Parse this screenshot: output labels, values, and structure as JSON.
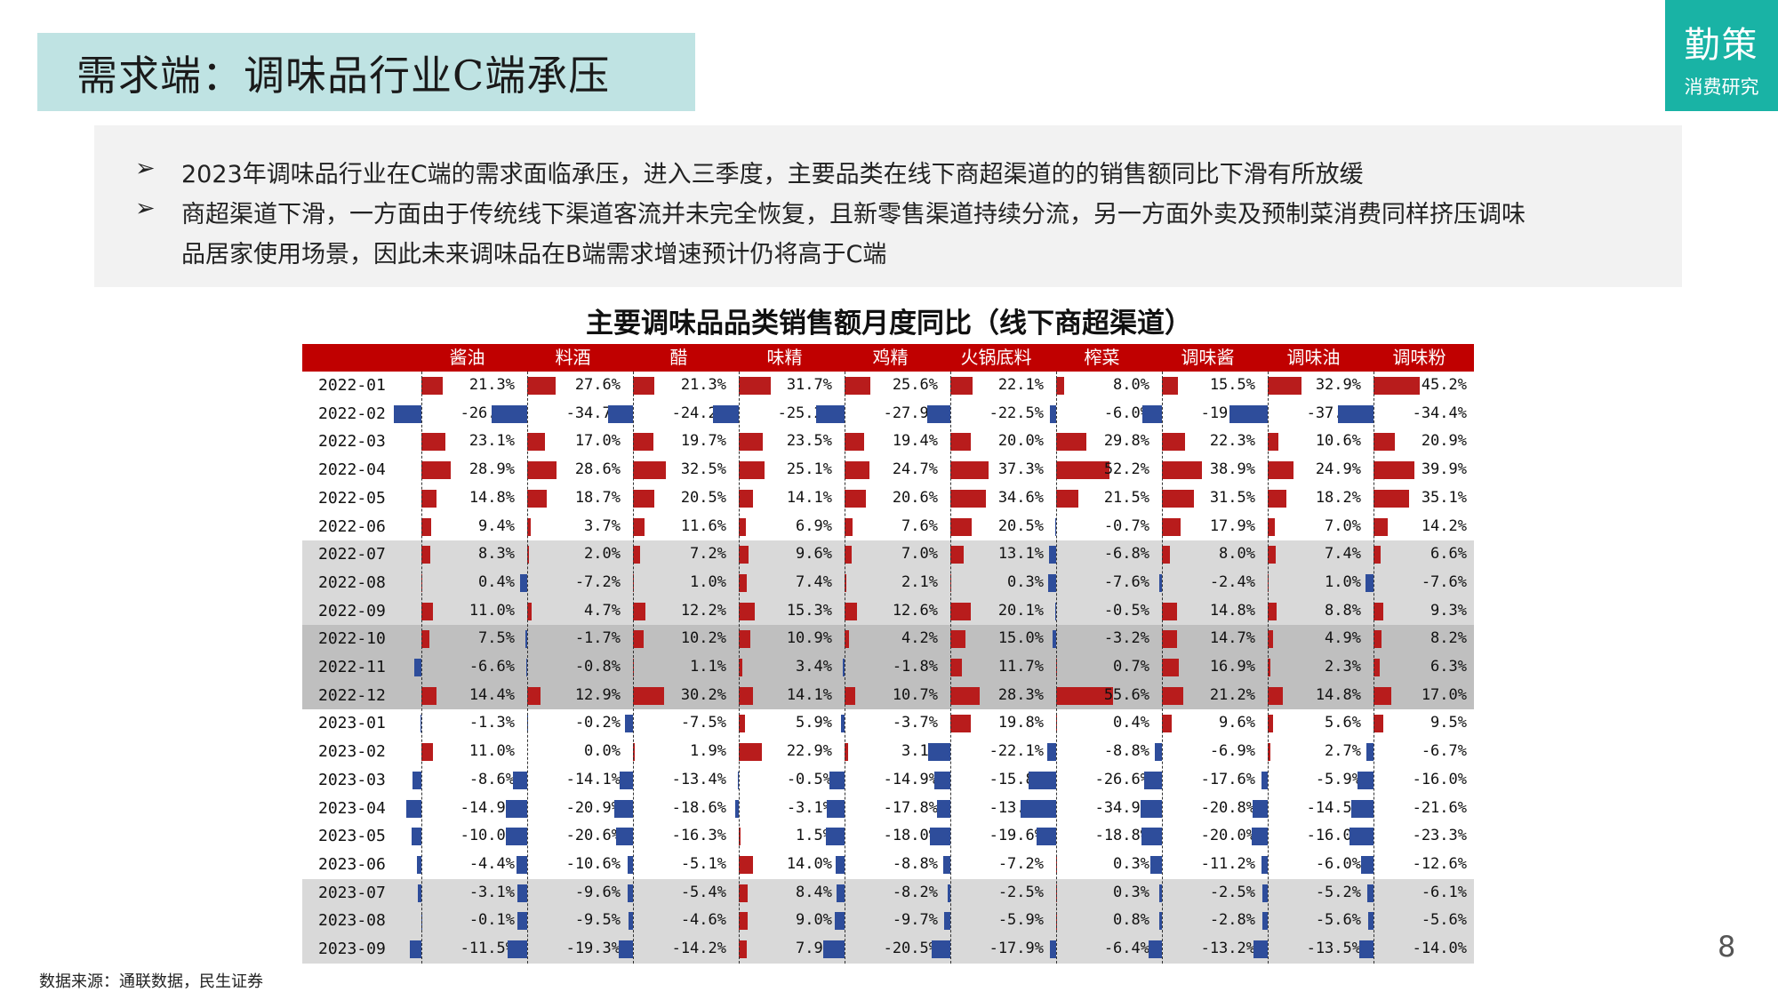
{
  "header": {
    "title": "需求端：调味品行业C端承压"
  },
  "logo": {
    "name": "勤策",
    "subtitle": "消费研究"
  },
  "summary": {
    "bullet_icon": "arrow-bullet-icon",
    "bullet_1": "2023年调味品行业在C端的需求面临承压，进入三季度，主要品类在线下商超渠道的的销售额同比下滑有所放缓",
    "bullet_2_line1": "商超渠道下滑，一方面由于传统线下渠道客流并未完全恢复，且新零售渠道持续分流，另一方面外卖及预制菜消费同样挤压调味",
    "bullet_2_line2": "品居家使用场景，因此未来调味品在B端需求增速预计仍将高于C端"
  },
  "chart_data": {
    "type": "table",
    "title": "主要调味品品类销售额月度同比（线下商超渠道）",
    "categories": [
      "酱油",
      "料酒",
      "醋",
      "味精",
      "鸡精",
      "火锅底料",
      "榨菜",
      "调味酱",
      "调味油",
      "调味粉"
    ],
    "rows": [
      {
        "date": "2022-01",
        "values": [
          21.3,
          27.6,
          21.3,
          31.7,
          25.6,
          22.1,
          8.0,
          15.5,
          32.9,
          45.2
        ]
      },
      {
        "date": "2022-02",
        "values": [
          -26.6,
          -34.7,
          -24.2,
          -25.2,
          -27.9,
          -22.5,
          -6.0,
          -19.3,
          -37.7,
          -34.4
        ]
      },
      {
        "date": "2022-03",
        "values": [
          23.1,
          17.0,
          19.7,
          23.5,
          19.4,
          20.0,
          29.8,
          22.3,
          10.6,
          20.9
        ]
      },
      {
        "date": "2022-04",
        "values": [
          28.9,
          28.6,
          32.5,
          25.1,
          24.7,
          37.3,
          52.2,
          38.9,
          24.9,
          39.9
        ]
      },
      {
        "date": "2022-05",
        "values": [
          14.8,
          18.7,
          20.5,
          14.1,
          20.6,
          34.6,
          21.5,
          31.5,
          18.2,
          35.1
        ]
      },
      {
        "date": "2022-06",
        "values": [
          9.4,
          3.7,
          11.6,
          6.9,
          7.6,
          20.5,
          -0.7,
          17.9,
          7.0,
          14.2
        ]
      },
      {
        "date": "2022-07",
        "values": [
          8.3,
          2.0,
          7.2,
          9.6,
          7.0,
          13.1,
          -6.8,
          8.0,
          7.4,
          6.6
        ]
      },
      {
        "date": "2022-08",
        "values": [
          0.4,
          -7.2,
          1.0,
          7.4,
          2.1,
          0.3,
          -7.6,
          -2.4,
          1.0,
          -7.6
        ]
      },
      {
        "date": "2022-09",
        "values": [
          11.0,
          4.7,
          12.2,
          15.3,
          12.6,
          20.1,
          -0.5,
          14.8,
          8.8,
          9.3
        ]
      },
      {
        "date": "2022-10",
        "values": [
          7.5,
          -1.7,
          10.2,
          10.9,
          4.2,
          15.0,
          -3.2,
          14.7,
          4.9,
          8.2
        ]
      },
      {
        "date": "2022-11",
        "values": [
          -6.6,
          -0.8,
          1.1,
          3.4,
          -1.8,
          11.7,
          0.7,
          16.9,
          2.3,
          6.3
        ]
      },
      {
        "date": "2022-12",
        "values": [
          14.4,
          12.9,
          30.2,
          14.1,
          10.7,
          28.3,
          55.6,
          21.2,
          14.8,
          17.0
        ]
      },
      {
        "date": "2023-01",
        "values": [
          -1.3,
          -0.2,
          -7.5,
          5.9,
          -3.7,
          19.8,
          0.4,
          9.6,
          5.6,
          9.5
        ]
      },
      {
        "date": "2023-02",
        "values": [
          11.0,
          0.0,
          1.9,
          22.9,
          3.1,
          -22.1,
          -8.8,
          -6.9,
          2.7,
          -6.7
        ]
      },
      {
        "date": "2023-03",
        "values": [
          -8.6,
          -14.1,
          -13.4,
          -0.5,
          -14.9,
          -15.8,
          -26.6,
          -17.6,
          -5.9,
          -16.0
        ]
      },
      {
        "date": "2023-04",
        "values": [
          -14.9,
          -20.9,
          -18.6,
          -3.1,
          -17.8,
          -13.2,
          -34.9,
          -20.8,
          -14.5,
          -21.6
        ]
      },
      {
        "date": "2023-05",
        "values": [
          -10.0,
          -20.6,
          -16.3,
          1.5,
          -18.0,
          -19.6,
          -18.8,
          -20.0,
          -16.0,
          -23.3
        ]
      },
      {
        "date": "2023-06",
        "values": [
          -4.4,
          -10.6,
          -5.1,
          14.0,
          -8.8,
          -7.2,
          0.3,
          -11.2,
          -6.0,
          -12.6
        ]
      },
      {
        "date": "2023-07",
        "values": [
          -3.1,
          -9.6,
          -5.4,
          8.4,
          -8.2,
          -2.5,
          0.3,
          -2.5,
          -5.2,
          -6.1
        ]
      },
      {
        "date": "2023-08",
        "values": [
          -0.1,
          -9.5,
          -4.6,
          9.0,
          -9.7,
          -5.9,
          0.8,
          -2.8,
          -5.6,
          -5.6
        ]
      },
      {
        "date": "2023-09",
        "values": [
          -11.5,
          -19.3,
          -14.2,
          7.9,
          -20.5,
          -17.9,
          -6.4,
          -13.2,
          -13.5,
          -14.0
        ]
      }
    ],
    "row_shading": [
      "none",
      "none",
      "none",
      "none",
      "none",
      "none",
      "light",
      "light",
      "light",
      "dark",
      "dark",
      "dark",
      "none",
      "none",
      "none",
      "none",
      "none",
      "none",
      "light",
      "light",
      "light"
    ],
    "value_suffix": "%",
    "colors": {
      "header": "#c00000",
      "positive": "#b81c1c",
      "negative": "#2e4d9b",
      "shade_light": "#d9d9d9",
      "shade_dark": "#bfbfbf"
    }
  },
  "footer": {
    "source": "数据来源：通联数据，民生证券",
    "page": "8"
  }
}
